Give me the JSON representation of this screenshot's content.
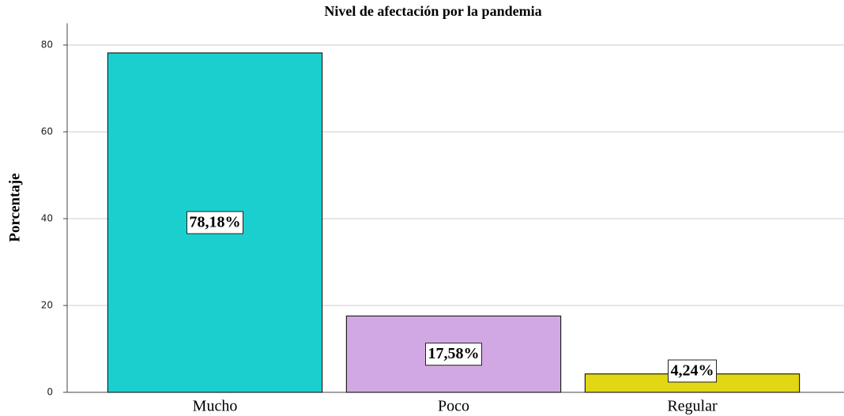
{
  "chart_data": {
    "type": "bar",
    "title": "Nivel de afectación por la pandemia",
    "ylabel": "Porcentaje",
    "categories": [
      "Mucho",
      "Poco",
      "Regular"
    ],
    "values": [
      78.18,
      17.58,
      4.24
    ],
    "value_labels": [
      "78,18%",
      "17,58%",
      "4,24%"
    ],
    "colors": [
      "#1ccfcf",
      "#d1a8e3",
      "#e2d714"
    ],
    "ylim": [
      0,
      85
    ],
    "yticks": [
      0,
      20,
      40,
      60,
      80
    ],
    "grid": true
  }
}
